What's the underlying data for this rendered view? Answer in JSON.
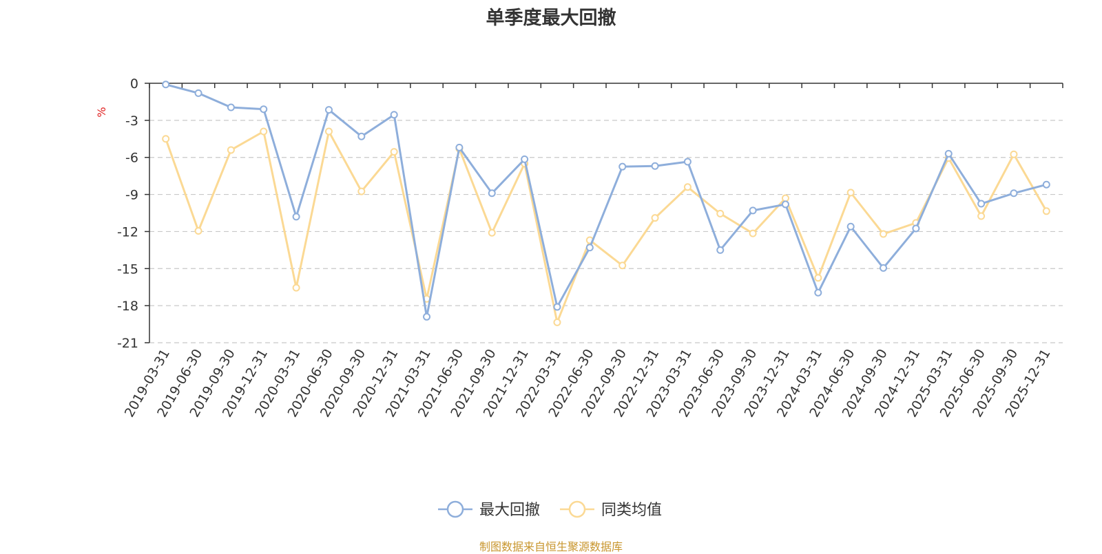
{
  "chart_data": {
    "type": "line",
    "title": "单季度最大回撤",
    "xlabel": "",
    "ylabel": "%",
    "ylim": [
      -21,
      0
    ],
    "yticks": [
      "0",
      "-3",
      "-6",
      "-9",
      "-12",
      "-15",
      "-18",
      "-21"
    ],
    "ytick_values": [
      0,
      -3,
      -6,
      -9,
      -12,
      -15,
      -18,
      -21
    ],
    "grid": true,
    "legend_position": "bottom",
    "categories": [
      "2019-03-31",
      "2019-06-30",
      "2019-09-30",
      "2019-12-31",
      "2020-03-31",
      "2020-06-30",
      "2020-09-30",
      "2020-12-31",
      "2021-03-31",
      "2021-06-30",
      "2021-09-30",
      "2021-12-31",
      "2022-03-31",
      "2022-06-30",
      "2022-09-30",
      "2022-12-31",
      "2023-03-31",
      "2023-06-30",
      "2023-09-30",
      "2023-12-31",
      "2024-03-31",
      "2024-06-30",
      "2024-09-30",
      "2024-12-31",
      "2025-03-31",
      "2025-06-30",
      "2025-09-30",
      "2025-12-31"
    ],
    "series": [
      {
        "name": "最大回撤",
        "color": "#8eaedb",
        "values": [
          -0.1,
          -0.8,
          -1.95,
          -2.1,
          -10.8,
          -2.15,
          -4.3,
          -2.55,
          -18.9,
          -5.2,
          -8.9,
          -6.15,
          -18.1,
          -13.3,
          -6.75,
          -6.7,
          -6.35,
          -13.5,
          -10.3,
          -9.8,
          -16.95,
          -11.6,
          -14.95,
          -11.75,
          -5.7,
          -9.75,
          -8.9,
          -8.2
        ]
      },
      {
        "name": "同类均值",
        "color": "#fbd994",
        "values": [
          -4.5,
          -11.95,
          -5.4,
          -3.9,
          -16.55,
          -3.9,
          -8.75,
          -5.55,
          -17.45,
          -5.3,
          -12.1,
          -6.5,
          -19.35,
          -12.7,
          -14.75,
          -10.9,
          -8.4,
          -10.55,
          -12.15,
          -9.3,
          -15.75,
          -8.85,
          -12.2,
          -11.3,
          -6.05,
          -10.75,
          -5.75,
          -10.35
        ]
      }
    ],
    "source_note": "制图数据来自恒生聚源数据库"
  }
}
